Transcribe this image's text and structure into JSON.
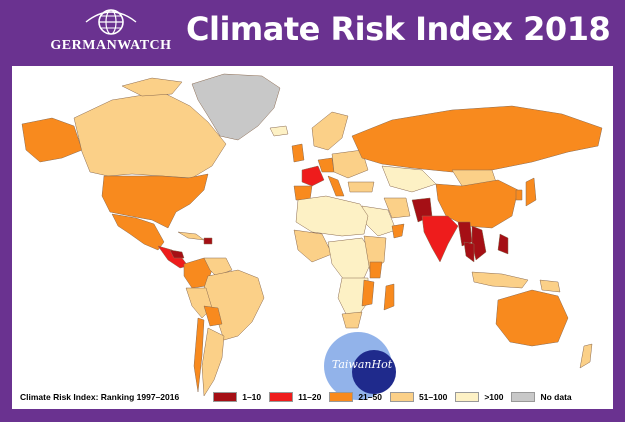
{
  "header": {
    "logo_text": "GERMANWATCH",
    "title": "Climate Risk Index 2018"
  },
  "legend": {
    "title": "Climate Risk Index: Ranking 1997–2016",
    "items": [
      {
        "label": "1–10",
        "color": "#a50f15"
      },
      {
        "label": "11–20",
        "color": "#ee1c1c"
      },
      {
        "label": "21–50",
        "color": "#f88a1e"
      },
      {
        "label": "51–100",
        "color": "#fbd088"
      },
      {
        "label": ">100",
        "color": "#fdf1c5"
      },
      {
        "label": "No data",
        "color": "#c8c8c8"
      }
    ]
  },
  "watermark": {
    "text": "TaiwanHot"
  },
  "colors": {
    "frame": "#6a3290",
    "ocean": "#ffffff",
    "rank_1_10": "#a50f15",
    "rank_11_20": "#ee1c1c",
    "rank_21_50": "#f88a1e",
    "rank_51_100": "#fbd088",
    "rank_over_100": "#fdf1c5",
    "no_data": "#c8c8c8"
  }
}
